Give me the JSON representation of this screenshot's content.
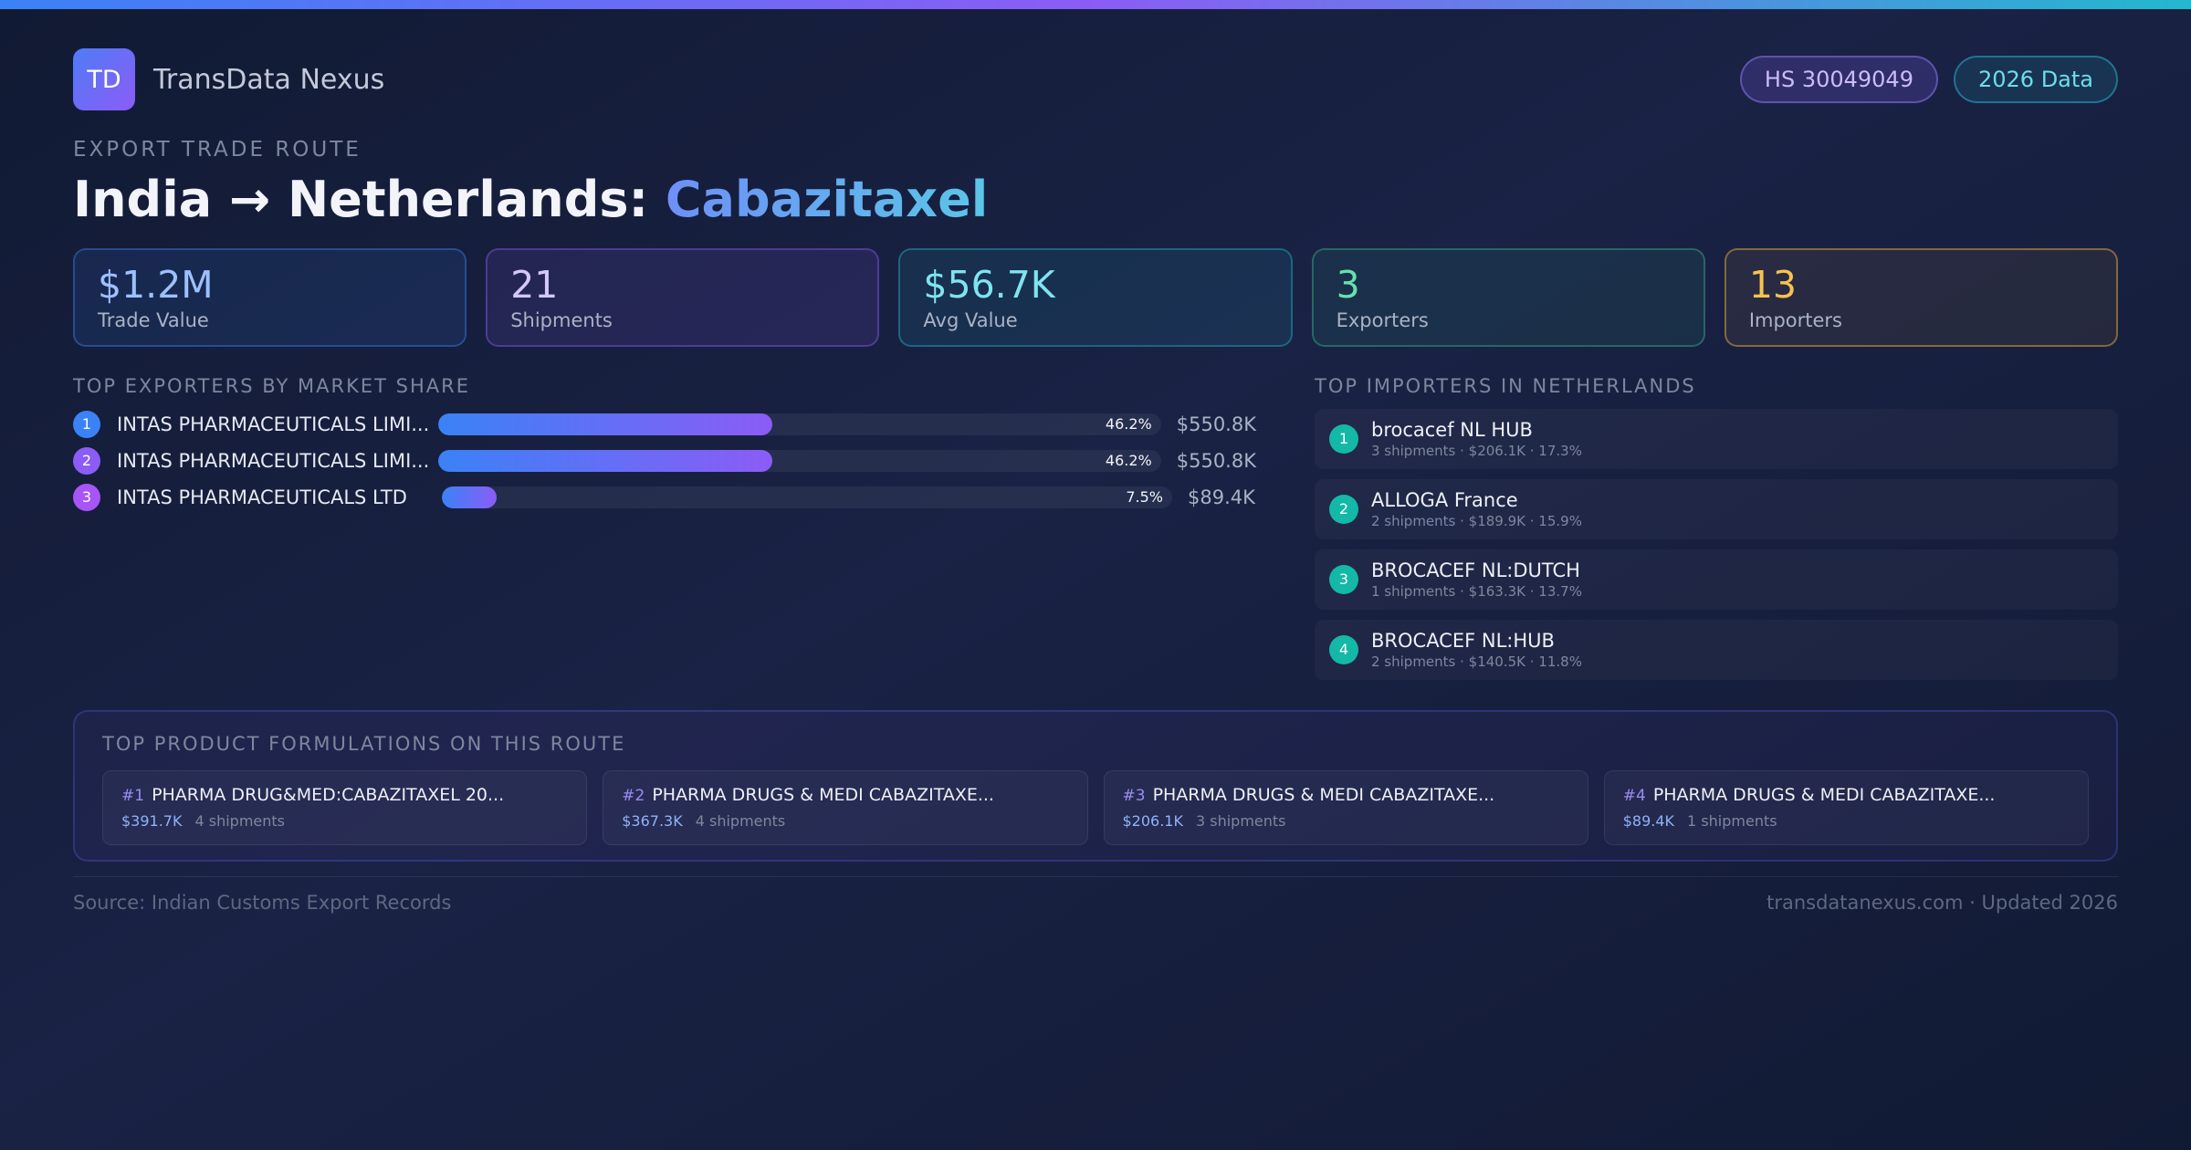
{
  "colors": {
    "top_bar": [
      "#3b82f6",
      "#8b5cf6",
      "#22b8cf"
    ],
    "exporter_ranks": [
      "#3b82f6",
      "#8b5cf6",
      "#a855f7"
    ],
    "importer_rank": "#14b8a6"
  },
  "header": {
    "logo": "TD",
    "brand": "TransData Nexus",
    "tags": {
      "hs_code": "HS 30049049",
      "year": "2026 Data"
    }
  },
  "eyebrow": "EXPORT TRADE ROUTE",
  "title": {
    "route": "India → Netherlands:",
    "product": "Cabazitaxel"
  },
  "stats": [
    {
      "value": "$1.2M",
      "label": "Trade Value"
    },
    {
      "value": "21",
      "label": "Shipments"
    },
    {
      "value": "$56.7K",
      "label": "Avg Value"
    },
    {
      "value": "3",
      "label": "Exporters"
    },
    {
      "value": "13",
      "label": "Importers"
    }
  ],
  "exporters": {
    "heading": "TOP EXPORTERS BY MARKET SHARE",
    "items": [
      {
        "rank": "1",
        "name": "INTAS PHARMACEUTICALS LIMI...",
        "share": 46.2,
        "share_label": "46.2%",
        "value": "$550.8K"
      },
      {
        "rank": "2",
        "name": "INTAS PHARMACEUTICALS LIMI...",
        "share": 46.2,
        "share_label": "46.2%",
        "value": "$550.8K"
      },
      {
        "rank": "3",
        "name": "INTAS PHARMACEUTICALS LTD",
        "share": 7.5,
        "share_label": "7.5%",
        "value": "$89.4K"
      }
    ]
  },
  "importers": {
    "heading": "TOP IMPORTERS IN NETHERLANDS",
    "items": [
      {
        "rank": "1",
        "name": "brocacef NL HUB",
        "meta": "3 shipments · $206.1K · 17.3%"
      },
      {
        "rank": "2",
        "name": "ALLOGA France",
        "meta": "2 shipments · $189.9K · 15.9%"
      },
      {
        "rank": "3",
        "name": "BROCACEF NL:DUTCH",
        "meta": "1 shipments · $163.3K · 13.7%"
      },
      {
        "rank": "4",
        "name": "BROCACEF NL:HUB",
        "meta": "2 shipments · $140.5K · 11.8%"
      }
    ]
  },
  "formulations": {
    "heading": "TOP PRODUCT FORMULATIONS ON THIS ROUTE",
    "items": [
      {
        "rank": "#1",
        "name": "PHARMA DRUG&MED:CABAZITAXEL 20...",
        "value": "$391.7K",
        "shipments": "4 shipments"
      },
      {
        "rank": "#2",
        "name": "PHARMA DRUGS & MEDI CABAZITAXE...",
        "value": "$367.3K",
        "shipments": "4 shipments"
      },
      {
        "rank": "#3",
        "name": "PHARMA DRUGS & MEDI CABAZITAXE...",
        "value": "$206.1K",
        "shipments": "3 shipments"
      },
      {
        "rank": "#4",
        "name": "PHARMA DRUGS & MEDI CABAZITAXE...",
        "value": "$89.4K",
        "shipments": "1 shipments"
      }
    ]
  },
  "footer": {
    "source": "Source: Indian Customs Export Records",
    "site": "transdatanexus.com · Updated 2026"
  }
}
